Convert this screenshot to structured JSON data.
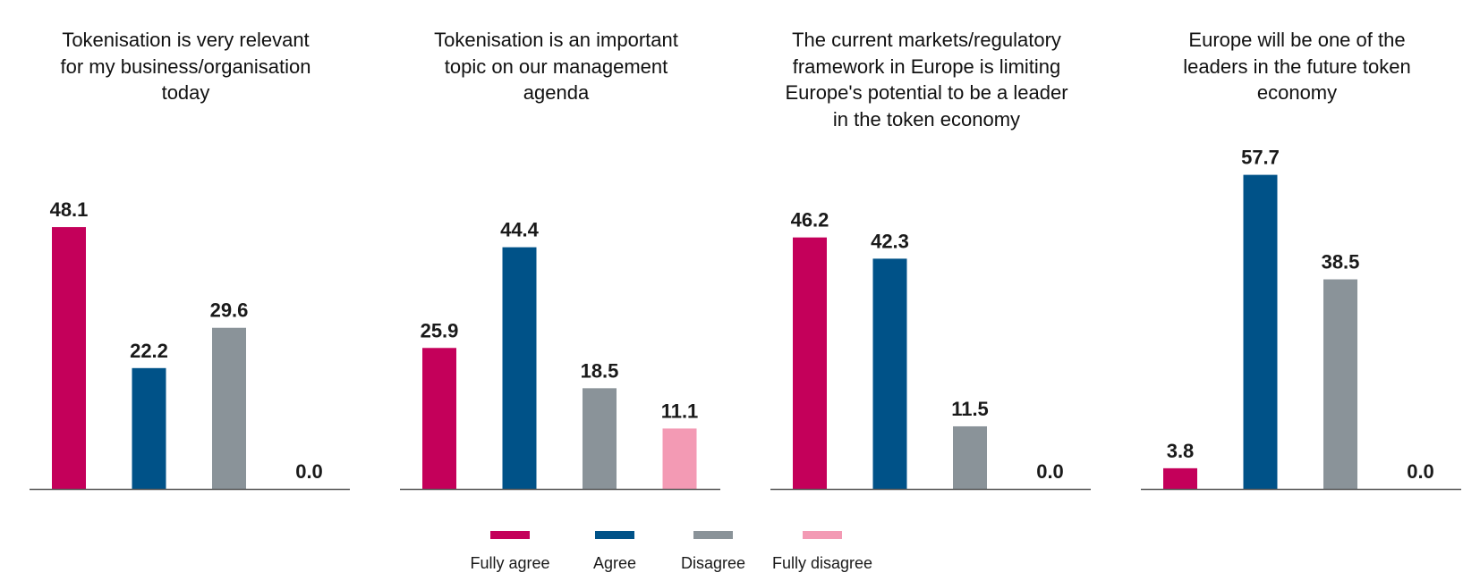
{
  "chart_data": [
    {
      "type": "bar",
      "title": "Tokenisation is very relevant for my business/organisation today",
      "title_lines": [
        "Tokenisation is very relevant",
        "for my business/organisation",
        "today"
      ],
      "categories": [
        "Fully agree",
        "Agree",
        "Disagree",
        "Fully disagree"
      ],
      "values": [
        48.1,
        22.2,
        29.6,
        0.0
      ],
      "labels": [
        "48.1",
        "22.2",
        "29.6",
        "0.0"
      ]
    },
    {
      "type": "bar",
      "title": "Tokenisation is an important topic on our management agenda",
      "title_lines": [
        "Tokenisation is an important",
        "topic on our management",
        "agenda"
      ],
      "categories": [
        "Fully agree",
        "Agree",
        "Disagree",
        "Fully disagree"
      ],
      "values": [
        25.9,
        44.4,
        18.5,
        11.1
      ],
      "labels": [
        "25.9",
        "44.4",
        "18.5",
        "11.1"
      ]
    },
    {
      "type": "bar",
      "title": "The current markets/regulatory framework in Europe is limiting Europe's potential to be a leader in the token economy",
      "title_lines": [
        "The current markets/regulatory",
        "framework in Europe is limiting",
        "Europe's potential to be a leader",
        "in the token economy"
      ],
      "categories": [
        "Fully agree",
        "Agree",
        "Disagree",
        "Fully disagree"
      ],
      "values": [
        46.2,
        42.3,
        11.5,
        0.0
      ],
      "labels": [
        "46.2",
        "42.3",
        "11.5",
        "0.0"
      ]
    },
    {
      "type": "bar",
      "title": "Europe will be one of the leaders in the future token economy",
      "title_lines": [
        "Europe will be one of the",
        "leaders in the future token",
        "economy"
      ],
      "categories": [
        "Fully agree",
        "Agree",
        "Disagree",
        "Fully disagree"
      ],
      "values": [
        3.8,
        57.7,
        38.5,
        0.0
      ],
      "labels": [
        "3.8",
        "57.7",
        "38.5",
        "0.0"
      ]
    }
  ],
  "legend": [
    {
      "label": "Fully agree",
      "color": "#c4005a"
    },
    {
      "label": "Agree",
      "color": "#005288"
    },
    {
      "label": "Disagree",
      "color": "#8a9399"
    },
    {
      "label": "Fully disagree",
      "color": "#f39ab4"
    }
  ],
  "axis_color": "#555555",
  "grid": false,
  "legend_position": "bottom"
}
